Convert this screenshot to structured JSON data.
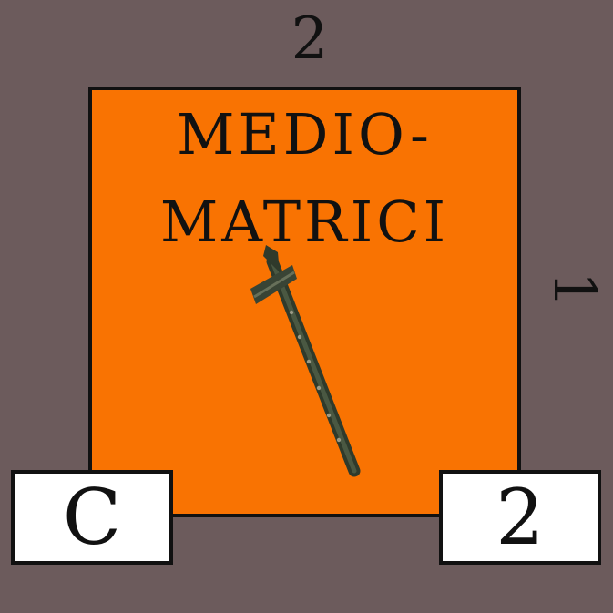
{
  "card": {
    "top_value": "2",
    "side_value": "1",
    "name_line1": "MEDIO-",
    "name_line2": "MATRICI",
    "icon": "pilum-icon",
    "bottom_left_value": "C",
    "bottom_right_value": "2"
  },
  "colors": {
    "background": "#6c5b5c",
    "card_fill": "#f97302",
    "box_fill": "#ffffff",
    "text": "#111111"
  }
}
